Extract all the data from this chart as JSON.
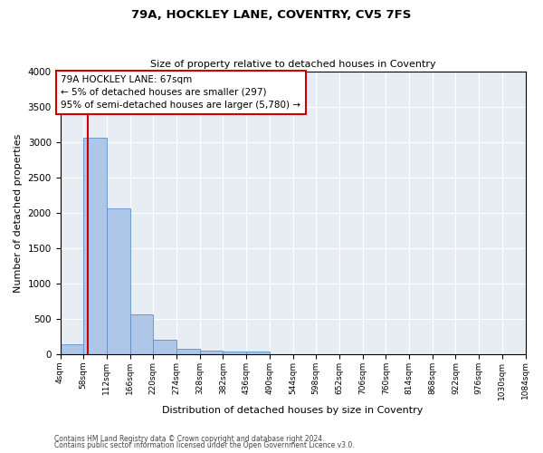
{
  "title1": "79A, HOCKLEY LANE, COVENTRY, CV5 7FS",
  "title2": "Size of property relative to detached houses in Coventry",
  "xlabel": "Distribution of detached houses by size in Coventry",
  "ylabel": "Number of detached properties",
  "bar_color": "#aec6e8",
  "bar_edge_color": "#5b8fc9",
  "background_color": "#e8edf4",
  "grid_color": "#ffffff",
  "annotation_box_color": "#cc0000",
  "property_line_color": "#cc0000",
  "bin_edges": [
    4,
    58,
    112,
    166,
    220,
    274,
    328,
    382,
    436,
    490,
    544,
    598,
    652,
    706,
    760,
    814,
    868,
    922,
    976,
    1030,
    1084
  ],
  "bar_heights": [
    140,
    3070,
    2060,
    560,
    200,
    80,
    55,
    40,
    40,
    0,
    0,
    0,
    0,
    0,
    0,
    0,
    0,
    0,
    0,
    0
  ],
  "property_size": 67,
  "annotation_line1": "79A HOCKLEY LANE: 67sqm",
  "annotation_line2": "← 5% of detached houses are smaller (297)",
  "annotation_line3": "95% of semi-detached houses are larger (5,780) →",
  "ylim": [
    0,
    4000
  ],
  "yticks": [
    0,
    500,
    1000,
    1500,
    2000,
    2500,
    3000,
    3500,
    4000
  ],
  "footnote1": "Contains HM Land Registry data © Crown copyright and database right 2024.",
  "footnote2": "Contains public sector information licensed under the Open Government Licence v3.0."
}
